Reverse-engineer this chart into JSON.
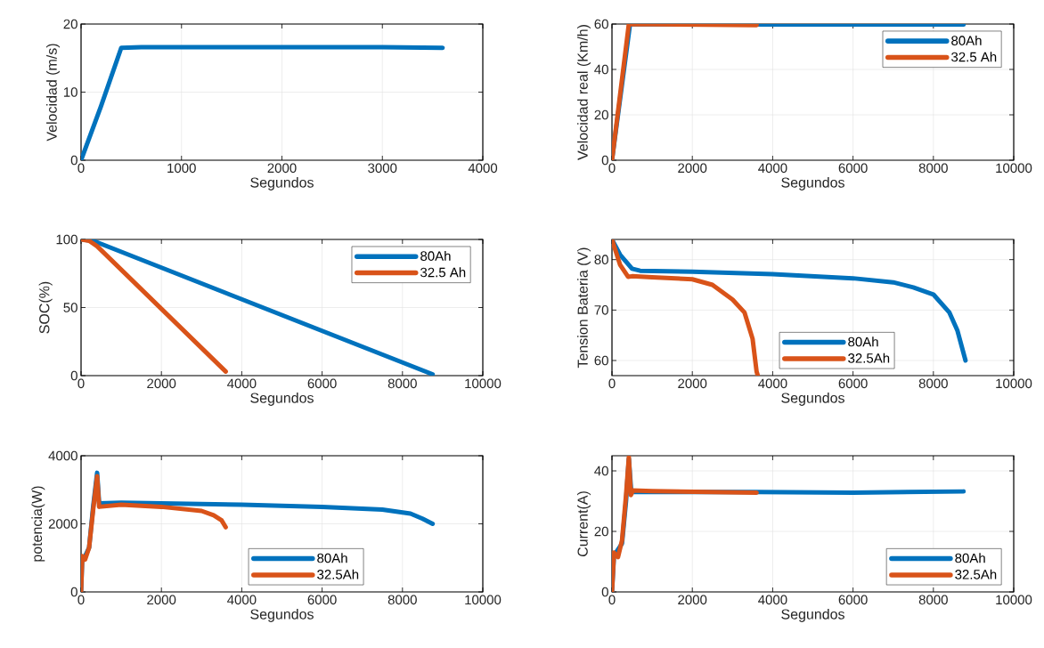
{
  "chart_data": [
    {
      "type": "line",
      "xlabel": "Segundos",
      "ylabel": "Velocidad (m/s)",
      "xlim": [
        0,
        4000
      ],
      "xticks": [
        0,
        1000,
        2000,
        3000,
        4000
      ],
      "ylim": [
        0,
        20
      ],
      "yticks": [
        0,
        10,
        20
      ],
      "grid": true,
      "series": [
        {
          "color": "#0072bd",
          "x": [
            0,
            200,
            400,
            600,
            1000,
            2000,
            3000,
            3600
          ],
          "values": [
            0,
            8,
            16.5,
            16.6,
            16.6,
            16.6,
            16.6,
            16.5
          ]
        }
      ]
    },
    {
      "type": "line",
      "xlabel": "Segundos",
      "ylabel": "Velocidad real (Km/h)",
      "xlim": [
        0,
        10000
      ],
      "xticks": [
        0,
        2000,
        4000,
        6000,
        8000,
        10000
      ],
      "ylim": [
        0,
        60
      ],
      "yticks": [
        0,
        20,
        40,
        60
      ],
      "grid": true,
      "legend": "top right",
      "series": [
        {
          "name": "80Ah",
          "color": "#0072bd",
          "x": [
            0,
            450,
            1000,
            4000,
            8750
          ],
          "values": [
            0,
            60,
            59.9,
            59.8,
            59.8
          ]
        },
        {
          "name": "32.5 Ah",
          "color": "#d95319",
          "x": [
            0,
            420,
            1000,
            3600
          ],
          "values": [
            0,
            60,
            59.9,
            59.5
          ]
        }
      ]
    },
    {
      "type": "line",
      "xlabel": "Segundos",
      "ylabel": "SOC(%)",
      "xlim": [
        0,
        10000
      ],
      "xticks": [
        0,
        2000,
        4000,
        6000,
        8000,
        10000
      ],
      "ylim": [
        0,
        100
      ],
      "yticks": [
        0,
        50,
        100
      ],
      "grid": true,
      "legend": "top right",
      "series": [
        {
          "name": "80Ah",
          "color": "#0072bd",
          "x": [
            0,
            300,
            8750
          ],
          "values": [
            100,
            99,
            1
          ]
        },
        {
          "name": "32.5 Ah",
          "color": "#d95319",
          "x": [
            0,
            200,
            400,
            3600
          ],
          "values": [
            100,
            99,
            95,
            3
          ]
        }
      ]
    },
    {
      "type": "line",
      "xlabel": "Segundos",
      "ylabel": "Tension Bateria (V)",
      "xlim": [
        0,
        10000
      ],
      "xticks": [
        0,
        2000,
        4000,
        6000,
        8000,
        10000
      ],
      "ylim": [
        57,
        84
      ],
      "yticks": [
        60,
        70,
        80
      ],
      "grid": true,
      "legend": "bottom",
      "series": [
        {
          "name": "80Ah",
          "color": "#0072bd",
          "x": [
            0,
            200,
            500,
            700,
            2000,
            4000,
            6000,
            7000,
            7500,
            8000,
            8400,
            8600,
            8800
          ],
          "values": [
            84,
            81,
            78.2,
            77.8,
            77.6,
            77.1,
            76.3,
            75.5,
            74.5,
            73.1,
            69.5,
            65.9,
            60
          ]
        },
        {
          "name": "32.5Ah",
          "color": "#d95319",
          "x": [
            0,
            200,
            400,
            500,
            1000,
            2000,
            2500,
            3000,
            3300,
            3500,
            3600,
            3630
          ],
          "values": [
            84,
            79,
            76.6,
            76.7,
            76.5,
            76.1,
            75,
            72.1,
            69.5,
            64.3,
            57.8,
            57
          ]
        }
      ]
    },
    {
      "type": "line",
      "xlabel": "Segundos",
      "ylabel": "potencia(W)",
      "xlim": [
        0,
        10000
      ],
      "xticks": [
        0,
        2000,
        4000,
        6000,
        8000,
        10000
      ],
      "ylim": [
        0,
        4000
      ],
      "yticks": [
        0,
        2000,
        4000
      ],
      "grid": true,
      "legend": "bottom",
      "series": [
        {
          "name": "80Ah",
          "color": "#0072bd",
          "x": [
            0,
            30,
            100,
            200,
            300,
            400,
            450,
            1000,
            4000,
            6000,
            7500,
            8200,
            8500,
            8750
          ],
          "values": [
            0,
            1000,
            1050,
            1300,
            2500,
            3500,
            2600,
            2620,
            2560,
            2500,
            2420,
            2300,
            2150,
            2000
          ]
        },
        {
          "name": "32.5Ah",
          "color": "#d95319",
          "x": [
            0,
            30,
            100,
            200,
            300,
            400,
            450,
            1000,
            2000,
            3000,
            3300,
            3500,
            3600
          ],
          "values": [
            0,
            1050,
            950,
            1300,
            2400,
            3400,
            2500,
            2560,
            2500,
            2380,
            2250,
            2100,
            1900
          ]
        }
      ]
    },
    {
      "type": "line",
      "xlabel": "Segundos",
      "ylabel": "Current(A)",
      "xlim": [
        0,
        10000
      ],
      "xticks": [
        0,
        2000,
        4000,
        6000,
        8000,
        10000
      ],
      "ylim": [
        0,
        45
      ],
      "yticks": [
        0,
        20,
        40
      ],
      "grid": true,
      "legend": "bottom right",
      "series": [
        {
          "name": "80Ah",
          "color": "#0072bd",
          "x": [
            0,
            50,
            250,
            350,
            420,
            480,
            3600,
            6000,
            8750
          ],
          "values": [
            0,
            12,
            16,
            30,
            44,
            33,
            33,
            32.8,
            33.2
          ]
        },
        {
          "name": "32.5Ah",
          "color": "#d95319",
          "x": [
            0,
            50,
            150,
            250,
            350,
            420,
            470,
            520,
            1000,
            3600
          ],
          "values": [
            0,
            13,
            11.5,
            17,
            32,
            44.5,
            32,
            33.5,
            33.3,
            32.8
          ]
        }
      ]
    }
  ]
}
